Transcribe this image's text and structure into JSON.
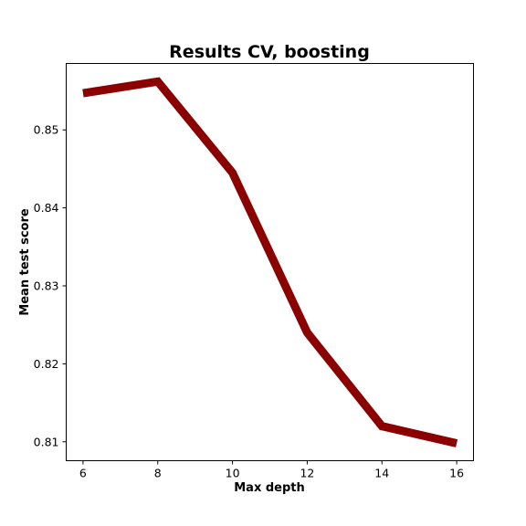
{
  "chart_data": {
    "type": "line",
    "title": "Results CV, boosting",
    "xlabel": "Max depth",
    "ylabel": "Mean test score",
    "x": [
      6,
      8,
      10,
      12,
      14,
      16
    ],
    "series": [
      {
        "values": [
          0.8547,
          0.8562,
          0.8445,
          0.824,
          0.812,
          0.8098
        ],
        "color": "#8b0000"
      }
    ],
    "xlim": [
      5.55,
      16.45
    ],
    "ylim": [
      0.80757,
      0.85852
    ],
    "xticks": [
      6,
      8,
      10,
      12,
      14,
      16
    ],
    "xtick_labels": [
      "6",
      "8",
      "10",
      "12",
      "14",
      "16"
    ],
    "yticks": [
      0.81,
      0.82,
      0.83,
      0.84,
      0.85
    ],
    "ytick_labels": [
      "0.81",
      "0.82",
      "0.83",
      "0.84",
      "0.85"
    ],
    "grid": false,
    "legend": "none"
  }
}
